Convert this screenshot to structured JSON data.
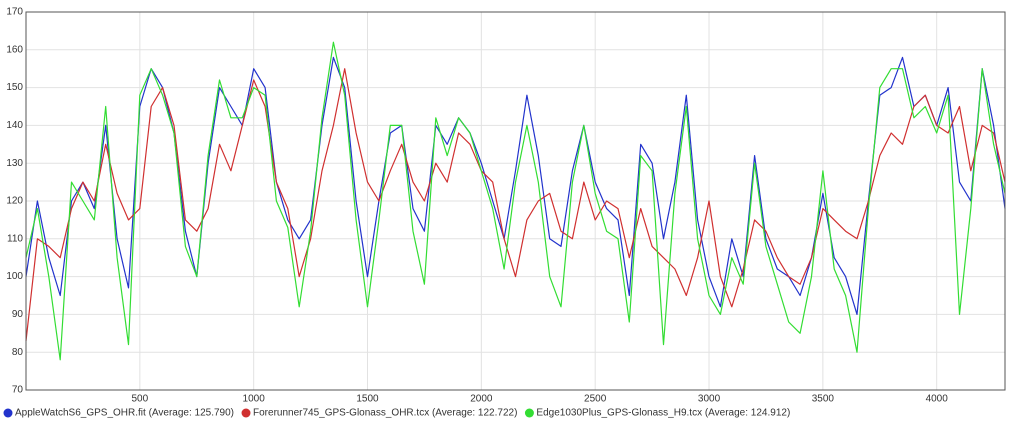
{
  "chart_data": {
    "type": "line",
    "x": [
      0,
      50,
      100,
      150,
      200,
      250,
      300,
      350,
      400,
      450,
      500,
      550,
      600,
      650,
      700,
      750,
      800,
      850,
      900,
      950,
      1000,
      1050,
      1100,
      1150,
      1200,
      1250,
      1300,
      1350,
      1400,
      1450,
      1500,
      1550,
      1600,
      1650,
      1700,
      1750,
      1800,
      1850,
      1900,
      1950,
      2000,
      2050,
      2100,
      2150,
      2200,
      2250,
      2300,
      2350,
      2400,
      2450,
      2500,
      2550,
      2600,
      2650,
      2700,
      2750,
      2800,
      2850,
      2900,
      2950,
      3000,
      3050,
      3100,
      3150,
      3200,
      3250,
      3300,
      3350,
      3400,
      3450,
      3500,
      3550,
      3600,
      3650,
      3700,
      3750,
      3800,
      3850,
      3900,
      3950,
      4000,
      4050,
      4100,
      4150,
      4200,
      4250,
      4300
    ],
    "series": [
      {
        "name": "AppleWatchS6_GPS_OHR.fit (Average: 125.790)",
        "color": "#2233cc",
        "values": [
          100,
          120,
          105,
          95,
          120,
          125,
          118,
          140,
          110,
          97,
          145,
          155,
          150,
          138,
          112,
          100,
          130,
          150,
          145,
          140,
          155,
          150,
          125,
          115,
          110,
          115,
          140,
          158,
          150,
          120,
          100,
          120,
          138,
          140,
          118,
          112,
          140,
          135,
          142,
          138,
          130,
          120,
          110,
          128,
          148,
          132,
          110,
          108,
          128,
          140,
          125,
          118,
          115,
          95,
          135,
          130,
          110,
          125,
          148,
          115,
          100,
          92,
          110,
          100,
          132,
          110,
          102,
          100,
          95,
          105,
          122,
          105,
          100,
          90,
          120,
          148,
          150,
          158,
          145,
          148,
          140,
          150,
          125,
          120,
          155,
          140,
          118
        ]
      },
      {
        "name": "Forerunner745_GPS-Glonass_OHR.tcx (Average: 122.722)",
        "color": "#d03030",
        "values": [
          83,
          110,
          108,
          105,
          118,
          125,
          120,
          135,
          122,
          115,
          118,
          145,
          150,
          140,
          115,
          112,
          118,
          135,
          128,
          140,
          152,
          145,
          125,
          118,
          100,
          110,
          128,
          140,
          155,
          138,
          125,
          120,
          128,
          135,
          125,
          120,
          130,
          125,
          138,
          135,
          128,
          125,
          110,
          100,
          115,
          120,
          122,
          112,
          110,
          125,
          115,
          120,
          118,
          105,
          118,
          108,
          105,
          102,
          95,
          105,
          120,
          100,
          92,
          102,
          115,
          112,
          105,
          100,
          98,
          105,
          118,
          115,
          112,
          110,
          120,
          132,
          138,
          135,
          145,
          148,
          140,
          138,
          145,
          128,
          140,
          138,
          125
        ]
      },
      {
        "name": "Edge1030Plus_GPS-Glonass_H9.tcx (Average: 124.912)",
        "color": "#33dd33",
        "values": [
          105,
          118,
          100,
          78,
          125,
          120,
          115,
          145,
          105,
          82,
          148,
          155,
          148,
          138,
          108,
          100,
          132,
          152,
          142,
          142,
          150,
          148,
          120,
          113,
          92,
          112,
          142,
          162,
          148,
          115,
          92,
          115,
          140,
          140,
          112,
          98,
          142,
          132,
          142,
          138,
          128,
          118,
          102,
          125,
          140,
          125,
          100,
          92,
          125,
          140,
          122,
          112,
          110,
          88,
          132,
          128,
          82,
          122,
          145,
          110,
          95,
          90,
          105,
          98,
          130,
          108,
          98,
          88,
          85,
          100,
          128,
          102,
          95,
          80,
          118,
          150,
          155,
          155,
          142,
          145,
          138,
          148,
          90,
          118,
          155,
          135,
          122
        ]
      }
    ],
    "xlim": [
      0,
      4300
    ],
    "xticks": [
      500,
      1000,
      1500,
      2000,
      2500,
      3000,
      3500,
      4000
    ],
    "ylim": [
      70,
      170
    ],
    "yticks": [
      70,
      80,
      90,
      100,
      110,
      120,
      130,
      140,
      150,
      160,
      170
    ],
    "grid": true
  }
}
